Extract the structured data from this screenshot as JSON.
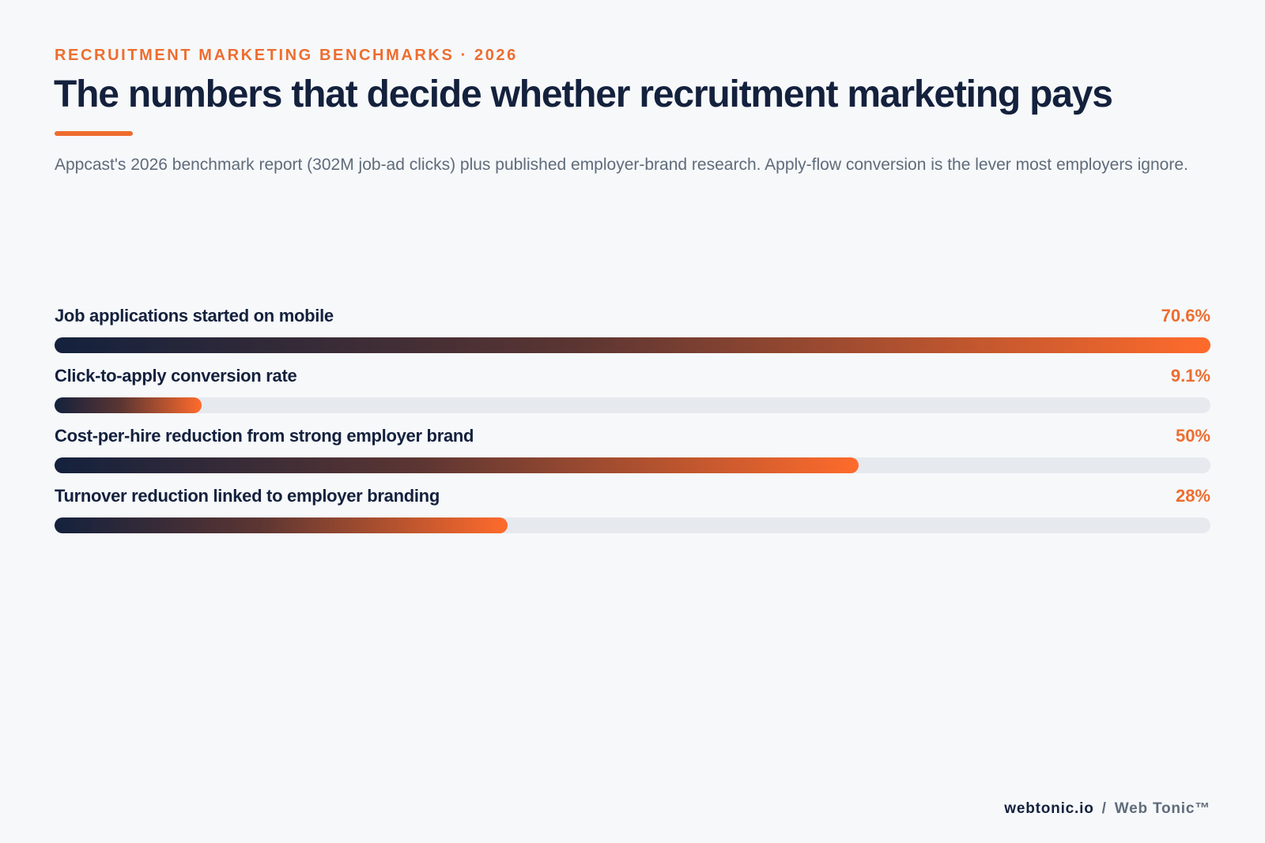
{
  "header": {
    "eyebrow": "RECRUITMENT MARKETING BENCHMARKS · 2026",
    "title": "The numbers that decide whether recruitment marketing pays",
    "subtitle": "Appcast's 2026 benchmark report (302M job-ad clicks) plus published employer-brand research. Apply-flow conversion is the lever most employers ignore."
  },
  "colors": {
    "accent": "#ee6d2f",
    "navy": "#14213d",
    "muted": "#5f6b7a",
    "track": "#e6e9ee",
    "background": "#f6f8fa"
  },
  "chart_data": {
    "type": "bar",
    "orientation": "horizontal",
    "xlim": [
      0,
      100
    ],
    "unit": "%",
    "categories": [
      "Job applications started on mobile",
      "Click-to-apply conversion rate",
      "Cost-per-hire reduction from strong employer brand",
      "Turnover reduction linked to employer branding"
    ],
    "values": [
      70.6,
      9.1,
      50,
      28
    ],
    "value_labels": [
      "70.6%",
      "9.1%",
      "50%",
      "28%"
    ],
    "note": ""
  },
  "footer": {
    "site": "webtonic.io",
    "separator": "/",
    "brand": "Web Tonic™"
  }
}
